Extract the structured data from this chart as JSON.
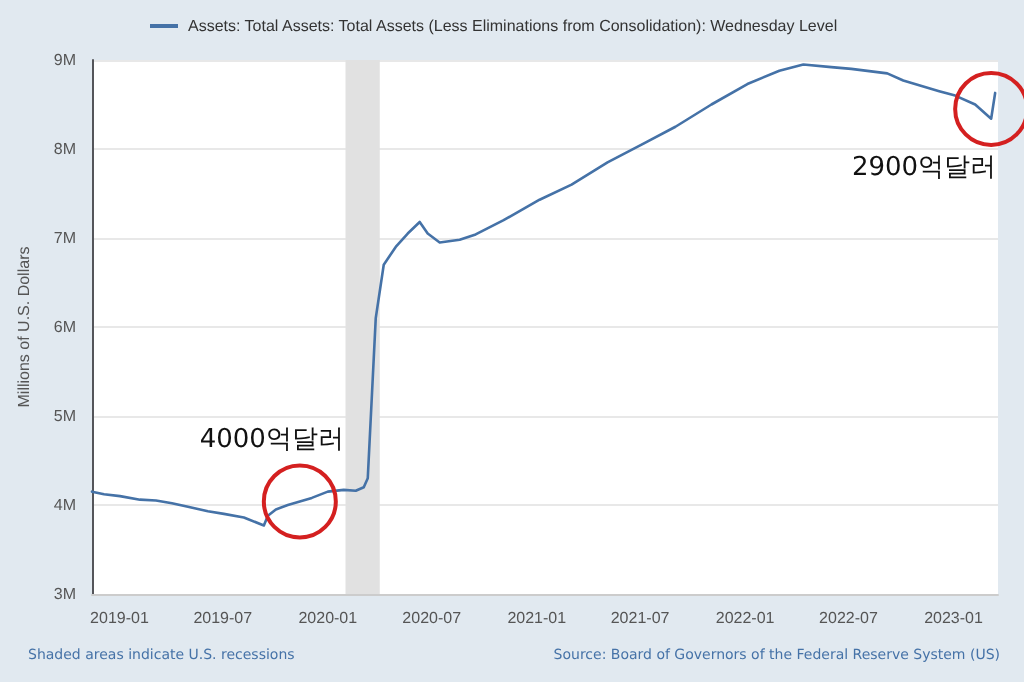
{
  "chart_data": {
    "type": "line",
    "ylabel": "Millions of U.S. Dollars",
    "legend": "top left",
    "grid": "y",
    "x": [
      "2018-11-14",
      "2018-12-05",
      "2019-01-02",
      "2019-02-06",
      "2019-03-06",
      "2019-04-03",
      "2019-05-01",
      "2019-06-05",
      "2019-07-03",
      "2019-08-07",
      "2019-09-11",
      "2019-09-18",
      "2019-10-02",
      "2019-10-23",
      "2019-11-13",
      "2019-12-04",
      "2020-01-01",
      "2020-01-29",
      "2020-02-19",
      "2020-03-04",
      "2020-03-11",
      "2020-03-18",
      "2020-03-25",
      "2020-04-08",
      "2020-04-29",
      "2020-05-20",
      "2020-06-10",
      "2020-06-24",
      "2020-07-15",
      "2020-08-19",
      "2020-09-16",
      "2020-11-04",
      "2021-01-06",
      "2021-03-03",
      "2021-05-05",
      "2021-07-07",
      "2021-09-01",
      "2021-11-03",
      "2022-01-05",
      "2022-03-02",
      "2022-04-13",
      "2022-06-01",
      "2022-07-06",
      "2022-09-07",
      "2022-10-05",
      "2022-12-07",
      "2023-01-04",
      "2023-02-08",
      "2023-03-08",
      "2023-03-15"
    ],
    "series": [
      {
        "name": "Assets: Total Assets: Total Assets (Less Eliminations from Consolidation): Wednesday Level",
        "color": "#4572a7",
        "values": [
          4150000,
          4120000,
          4100000,
          4060000,
          4050000,
          4020000,
          3980000,
          3930000,
          3900000,
          3860000,
          3770000,
          3880000,
          3950000,
          4000000,
          4040000,
          4080000,
          4150000,
          4170000,
          4160000,
          4200000,
          4300000,
          5200000,
          6100000,
          6700000,
          6900000,
          7050000,
          7180000,
          7050000,
          6950000,
          6980000,
          7040000,
          7200000,
          7430000,
          7600000,
          7850000,
          8060000,
          8250000,
          8500000,
          8730000,
          8880000,
          8950000,
          8920000,
          8900000,
          8850000,
          8770000,
          8650000,
          8600000,
          8500000,
          8340000,
          8630000
        ]
      }
    ],
    "xlim": [
      "2018-11-14",
      "2023-03-20"
    ],
    "xticks": [
      {
        "value": "2019-01-01",
        "label": "2019-01"
      },
      {
        "value": "2019-07-01",
        "label": "2019-07"
      },
      {
        "value": "2020-01-01",
        "label": "2020-01"
      },
      {
        "value": "2020-07-01",
        "label": "2020-07"
      },
      {
        "value": "2021-01-01",
        "label": "2021-01"
      },
      {
        "value": "2021-07-01",
        "label": "2021-07"
      },
      {
        "value": "2022-01-01",
        "label": "2022-01"
      },
      {
        "value": "2022-07-01",
        "label": "2022-07"
      },
      {
        "value": "2023-01-01",
        "label": "2023-01"
      }
    ],
    "ylim": [
      3000000,
      9000000
    ],
    "yticks": [
      {
        "value": 3000000,
        "label": "3M"
      },
      {
        "value": 4000000,
        "label": "4M"
      },
      {
        "value": 5000000,
        "label": "5M"
      },
      {
        "value": 6000000,
        "label": "6M"
      },
      {
        "value": 7000000,
        "label": "7M"
      },
      {
        "value": 8000000,
        "label": "8M"
      },
      {
        "value": 9000000,
        "label": "9M"
      }
    ],
    "bands": [
      {
        "axis": "x",
        "from": "2020-02-01",
        "to": "2020-04-01",
        "color": "#e1e1e1"
      }
    ],
    "annotations": [
      {
        "text": "4000억달러",
        "x": "2019-11-13",
        "y": 4040000
      },
      {
        "text": "2900억달러",
        "x": "2023-03-08",
        "y": 8450000
      },
      "Shaded areas indicate U.S. recessions",
      "Source: Board of Governors of the Federal Reserve System (US)"
    ]
  }
}
